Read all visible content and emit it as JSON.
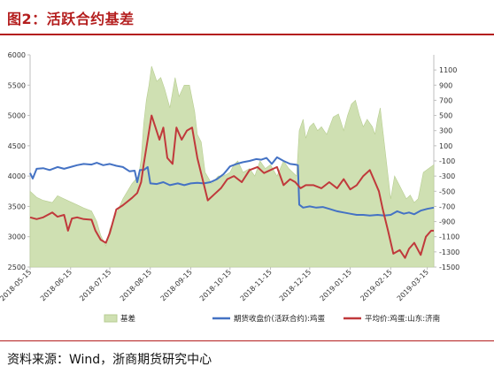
{
  "figure": {
    "title": "图2：活跃合约基差",
    "source": "资料来源：Wind，浙商期货研究中心"
  },
  "colors": {
    "basis_fill": "#cfe0b2",
    "basis_stroke": "#b7cd91",
    "futures_line": "#4472c4",
    "spot_line": "#c0393b",
    "axis": "#bfbfbf",
    "title": "#b41e1e"
  },
  "chart_data": {
    "type": "line+area",
    "title": "",
    "left_axis": {
      "min": 2500,
      "max": 6000,
      "ticks": [
        2500,
        3000,
        3500,
        4000,
        4500,
        5000,
        5500,
        6000
      ]
    },
    "right_axis": {
      "min": -1500,
      "max": 1300,
      "ticks": [
        -1500,
        -1300,
        -1100,
        -900,
        -700,
        -500,
        -300,
        -100,
        100,
        300,
        500,
        700,
        900,
        1100
      ]
    },
    "x_ticks": [
      "2018-05-15",
      "2018-06-15",
      "2018-07-15",
      "2018-08-15",
      "2018-09-15",
      "2018-10-15",
      "2018-11-15",
      "2018-12-15",
      "2019-01-15",
      "2019-02-15",
      "2019-03-15"
    ],
    "x_range": [
      "2018-05-15",
      "2019-03-20"
    ],
    "legend": [
      "基差",
      "期货收盘价(活跃合约):鸡蛋",
      "平均价:鸡蛋:山东:济南"
    ],
    "legend_position": "bottom",
    "series": [
      {
        "name": "基差",
        "kind": "area",
        "axis": "right",
        "points": [
          [
            "2018-05-15",
            -500
          ],
          [
            "2018-05-20",
            -580
          ],
          [
            "2018-05-25",
            -620
          ],
          [
            "2018-06-01",
            -650
          ],
          [
            "2018-06-05",
            -560
          ],
          [
            "2018-06-10",
            -600
          ],
          [
            "2018-06-15",
            -640
          ],
          [
            "2018-06-20",
            -680
          ],
          [
            "2018-06-25",
            -720
          ],
          [
            "2018-07-01",
            -760
          ],
          [
            "2018-07-05",
            -900
          ],
          [
            "2018-07-08",
            -1080
          ],
          [
            "2018-07-12",
            -1220
          ],
          [
            "2018-07-15",
            -1000
          ],
          [
            "2018-07-20",
            -800
          ],
          [
            "2018-07-25",
            -600
          ],
          [
            "2018-08-01",
            -400
          ],
          [
            "2018-08-06",
            -300
          ],
          [
            "2018-08-08",
            -80
          ],
          [
            "2018-08-10",
            400
          ],
          [
            "2018-08-12",
            700
          ],
          [
            "2018-08-14",
            900
          ],
          [
            "2018-08-16",
            1150
          ],
          [
            "2018-08-18",
            1050
          ],
          [
            "2018-08-20",
            950
          ],
          [
            "2018-08-23",
            1000
          ],
          [
            "2018-08-26",
            850
          ],
          [
            "2018-08-30",
            600
          ],
          [
            "2018-09-03",
            1000
          ],
          [
            "2018-09-06",
            750
          ],
          [
            "2018-09-10",
            900
          ],
          [
            "2018-09-14",
            900
          ],
          [
            "2018-09-18",
            550
          ],
          [
            "2018-09-20",
            250
          ],
          [
            "2018-09-23",
            150
          ],
          [
            "2018-09-26",
            -250
          ],
          [
            "2018-10-01",
            -400
          ],
          [
            "2018-10-06",
            -300
          ],
          [
            "2018-10-10",
            -300
          ],
          [
            "2018-10-15",
            -250
          ],
          [
            "2018-10-18",
            -150
          ],
          [
            "2018-10-21",
            -100
          ],
          [
            "2018-10-25",
            -250
          ],
          [
            "2018-10-30",
            -200
          ],
          [
            "2018-11-03",
            -300
          ],
          [
            "2018-11-07",
            -100
          ],
          [
            "2018-11-11",
            -200
          ],
          [
            "2018-11-15",
            -150
          ],
          [
            "2018-11-20",
            -300
          ],
          [
            "2018-11-25",
            -100
          ],
          [
            "2018-11-29",
            -200
          ],
          [
            "2018-12-02",
            -250
          ],
          [
            "2018-12-05",
            -300
          ],
          [
            "2018-12-07",
            300
          ],
          [
            "2018-12-10",
            450
          ],
          [
            "2018-12-12",
            200
          ],
          [
            "2018-12-15",
            350
          ],
          [
            "2018-12-18",
            400
          ],
          [
            "2018-12-21",
            300
          ],
          [
            "2018-12-24",
            350
          ],
          [
            "2018-12-28",
            250
          ],
          [
            "2019-01-02",
            480
          ],
          [
            "2019-01-06",
            520
          ],
          [
            "2019-01-10",
            300
          ],
          [
            "2019-01-13",
            500
          ],
          [
            "2019-01-16",
            650
          ],
          [
            "2019-01-19",
            700
          ],
          [
            "2019-01-22",
            500
          ],
          [
            "2019-01-25",
            350
          ],
          [
            "2019-01-28",
            450
          ],
          [
            "2019-02-01",
            350
          ],
          [
            "2019-02-03",
            250
          ],
          [
            "2019-02-05",
            450
          ],
          [
            "2019-02-07",
            600
          ],
          [
            "2019-02-15",
            -600
          ],
          [
            "2019-02-18",
            -300
          ],
          [
            "2019-02-21",
            -400
          ],
          [
            "2019-02-24",
            -500
          ],
          [
            "2019-02-27",
            -600
          ],
          [
            "2019-03-02",
            -550
          ],
          [
            "2019-03-05",
            -650
          ],
          [
            "2019-03-08",
            -600
          ],
          [
            "2019-03-12",
            -250
          ],
          [
            "2019-03-16",
            -200
          ],
          [
            "2019-03-20",
            -150
          ]
        ]
      },
      {
        "name": "期货收盘价(活跃合约):鸡蛋",
        "kind": "line",
        "axis": "left",
        "points": [
          [
            "2018-05-15",
            4050
          ],
          [
            "2018-05-17",
            3960
          ],
          [
            "2018-05-20",
            4120
          ],
          [
            "2018-05-25",
            4130
          ],
          [
            "2018-05-30",
            4100
          ],
          [
            "2018-06-05",
            4150
          ],
          [
            "2018-06-10",
            4120
          ],
          [
            "2018-06-15",
            4150
          ],
          [
            "2018-06-20",
            4180
          ],
          [
            "2018-06-25",
            4200
          ],
          [
            "2018-07-01",
            4190
          ],
          [
            "2018-07-05",
            4220
          ],
          [
            "2018-07-10",
            4180
          ],
          [
            "2018-07-15",
            4200
          ],
          [
            "2018-07-20",
            4170
          ],
          [
            "2018-07-25",
            4150
          ],
          [
            "2018-07-30",
            4080
          ],
          [
            "2018-08-03",
            4090
          ],
          [
            "2018-08-05",
            3900
          ],
          [
            "2018-08-07",
            4100
          ],
          [
            "2018-08-10",
            4100
          ],
          [
            "2018-08-13",
            4150
          ],
          [
            "2018-08-15",
            3880
          ],
          [
            "2018-08-20",
            3870
          ],
          [
            "2018-08-25",
            3900
          ],
          [
            "2018-08-30",
            3850
          ],
          [
            "2018-09-05",
            3880
          ],
          [
            "2018-09-10",
            3850
          ],
          [
            "2018-09-15",
            3880
          ],
          [
            "2018-09-20",
            3890
          ],
          [
            "2018-09-25",
            3880
          ],
          [
            "2018-09-30",
            3900
          ],
          [
            "2018-10-05",
            3950
          ],
          [
            "2018-10-10",
            4030
          ],
          [
            "2018-10-15",
            4160
          ],
          [
            "2018-10-20",
            4200
          ],
          [
            "2018-10-25",
            4230
          ],
          [
            "2018-10-30",
            4250
          ],
          [
            "2018-11-04",
            4280
          ],
          [
            "2018-11-08",
            4270
          ],
          [
            "2018-11-12",
            4300
          ],
          [
            "2018-11-16",
            4200
          ],
          [
            "2018-11-20",
            4310
          ],
          [
            "2018-11-25",
            4250
          ],
          [
            "2018-11-30",
            4200
          ],
          [
            "2018-12-04",
            4190
          ],
          [
            "2018-12-06",
            4180
          ],
          [
            "2018-12-07",
            3530
          ],
          [
            "2018-12-10",
            3480
          ],
          [
            "2018-12-15",
            3500
          ],
          [
            "2018-12-20",
            3480
          ],
          [
            "2018-12-25",
            3490
          ],
          [
            "2018-12-30",
            3460
          ],
          [
            "2019-01-05",
            3420
          ],
          [
            "2019-01-10",
            3400
          ],
          [
            "2019-01-15",
            3380
          ],
          [
            "2019-01-20",
            3360
          ],
          [
            "2019-01-25",
            3360
          ],
          [
            "2019-01-30",
            3350
          ],
          [
            "2019-02-05",
            3360
          ],
          [
            "2019-02-10",
            3350
          ],
          [
            "2019-02-15",
            3360
          ],
          [
            "2019-02-20",
            3420
          ],
          [
            "2019-02-25",
            3380
          ],
          [
            "2019-03-01",
            3400
          ],
          [
            "2019-03-05",
            3370
          ],
          [
            "2019-03-10",
            3430
          ],
          [
            "2019-03-15",
            3460
          ],
          [
            "2019-03-20",
            3480
          ]
        ]
      },
      {
        "name": "平均价:鸡蛋:山东:济南",
        "kind": "line",
        "axis": "left",
        "points": [
          [
            "2018-05-15",
            3320
          ],
          [
            "2018-05-20",
            3290
          ],
          [
            "2018-05-25",
            3320
          ],
          [
            "2018-06-01",
            3400
          ],
          [
            "2018-06-05",
            3330
          ],
          [
            "2018-06-10",
            3360
          ],
          [
            "2018-06-13",
            3100
          ],
          [
            "2018-06-16",
            3300
          ],
          [
            "2018-06-20",
            3320
          ],
          [
            "2018-06-25",
            3290
          ],
          [
            "2018-07-01",
            3280
          ],
          [
            "2018-07-04",
            3100
          ],
          [
            "2018-07-08",
            2950
          ],
          [
            "2018-07-12",
            2900
          ],
          [
            "2018-07-15",
            3060
          ],
          [
            "2018-07-20",
            3450
          ],
          [
            "2018-07-25",
            3520
          ],
          [
            "2018-08-01",
            3640
          ],
          [
            "2018-08-05",
            3720
          ],
          [
            "2018-08-08",
            3900
          ],
          [
            "2018-08-10",
            4200
          ],
          [
            "2018-08-13",
            4600
          ],
          [
            "2018-08-16",
            5000
          ],
          [
            "2018-08-19",
            4800
          ],
          [
            "2018-08-22",
            4600
          ],
          [
            "2018-08-25",
            4800
          ],
          [
            "2018-08-28",
            4300
          ],
          [
            "2018-09-01",
            4200
          ],
          [
            "2018-09-04",
            4800
          ],
          [
            "2018-09-08",
            4600
          ],
          [
            "2018-09-12",
            4750
          ],
          [
            "2018-09-16",
            4800
          ],
          [
            "2018-09-20",
            4300
          ],
          [
            "2018-09-24",
            3950
          ],
          [
            "2018-09-28",
            3600
          ],
          [
            "2018-10-03",
            3700
          ],
          [
            "2018-10-08",
            3800
          ],
          [
            "2018-10-13",
            3950
          ],
          [
            "2018-10-18",
            4000
          ],
          [
            "2018-10-24",
            3900
          ],
          [
            "2018-10-30",
            4100
          ],
          [
            "2018-11-05",
            4150
          ],
          [
            "2018-11-10",
            4050
          ],
          [
            "2018-11-15",
            4100
          ],
          [
            "2018-11-20",
            4150
          ],
          [
            "2018-11-25",
            3850
          ],
          [
            "2018-11-30",
            3950
          ],
          [
            "2018-12-04",
            3900
          ],
          [
            "2018-12-08",
            3800
          ],
          [
            "2018-12-12",
            3850
          ],
          [
            "2018-12-18",
            3850
          ],
          [
            "2018-12-24",
            3800
          ],
          [
            "2018-12-30",
            3900
          ],
          [
            "2019-01-05",
            3800
          ],
          [
            "2019-01-10",
            3950
          ],
          [
            "2019-01-15",
            3780
          ],
          [
            "2019-01-20",
            3850
          ],
          [
            "2019-01-25",
            4000
          ],
          [
            "2019-01-30",
            4100
          ],
          [
            "2019-02-03",
            3900
          ],
          [
            "2019-02-06",
            3750
          ],
          [
            "2019-02-09",
            3450
          ],
          [
            "2019-02-13",
            3100
          ],
          [
            "2019-02-17",
            2720
          ],
          [
            "2019-02-22",
            2780
          ],
          [
            "2019-02-26",
            2650
          ],
          [
            "2019-03-01",
            2800
          ],
          [
            "2019-03-05",
            2900
          ],
          [
            "2019-03-10",
            2700
          ],
          [
            "2019-03-14",
            3000
          ],
          [
            "2019-03-18",
            3100
          ],
          [
            "2019-03-20",
            3100
          ]
        ]
      }
    ]
  }
}
